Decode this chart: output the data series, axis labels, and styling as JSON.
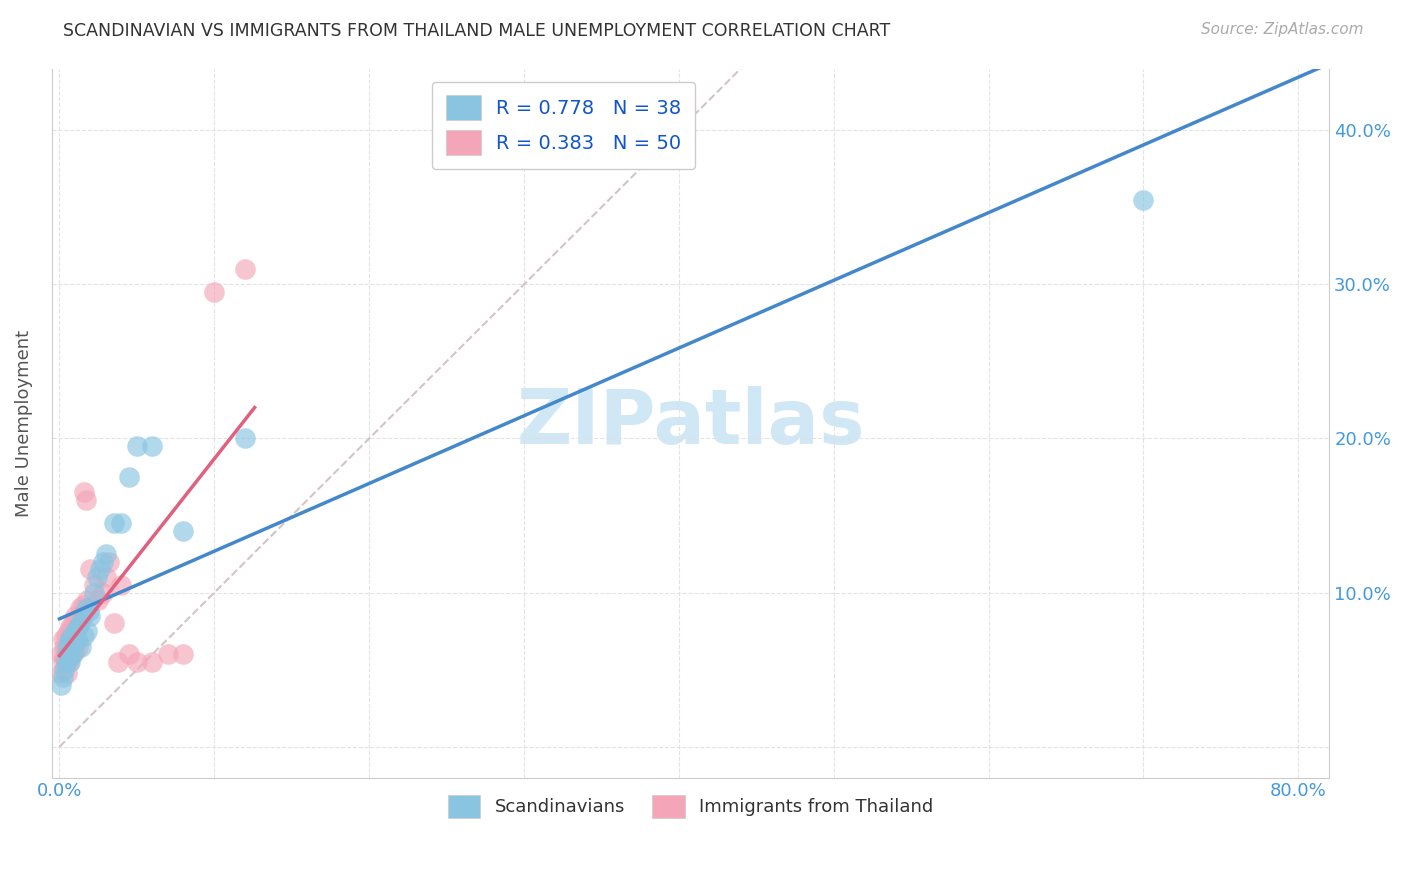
{
  "title": "SCANDINAVIAN VS IMMIGRANTS FROM THAILAND MALE UNEMPLOYMENT CORRELATION CHART",
  "source": "Source: ZipAtlas.com",
  "ylabel": "Male Unemployment",
  "x_ticks": [
    0.0,
    0.1,
    0.2,
    0.3,
    0.4,
    0.5,
    0.6,
    0.7,
    0.8
  ],
  "y_ticks": [
    0.0,
    0.1,
    0.2,
    0.3,
    0.4
  ],
  "right_y_tick_labels": [
    "",
    "10.0%",
    "20.0%",
    "30.0%",
    "40.0%"
  ],
  "xlim": [
    -0.005,
    0.82
  ],
  "ylim": [
    -0.02,
    0.44
  ],
  "legend1_label": "R = 0.778   N = 38",
  "legend2_label": "R = 0.383   N = 50",
  "legend_bottom1": "Scandinavians",
  "legend_bottom2": "Immigrants from Thailand",
  "blue_color": "#89c4e1",
  "pink_color": "#f4a6b8",
  "blue_line_color": "#4488cc",
  "pink_line_color": "#e06080",
  "ref_line_color": "#ccbbbb",
  "axis_label_color": "#4499dd",
  "watermark_color": "#d0e8f5",
  "grid_color": "#e0e0e0",
  "scandinavians_x": [
    0.001,
    0.002,
    0.003,
    0.004,
    0.005,
    0.005,
    0.006,
    0.006,
    0.007,
    0.007,
    0.008,
    0.008,
    0.009,
    0.01,
    0.01,
    0.011,
    0.012,
    0.013,
    0.014,
    0.015,
    0.016,
    0.017,
    0.018,
    0.019,
    0.02,
    0.022,
    0.024,
    0.026,
    0.028,
    0.03,
    0.035,
    0.04,
    0.045,
    0.05,
    0.06,
    0.08,
    0.12,
    0.7
  ],
  "scandinavians_y": [
    0.04,
    0.045,
    0.05,
    0.055,
    0.06,
    0.065,
    0.058,
    0.068,
    0.055,
    0.07,
    0.065,
    0.072,
    0.06,
    0.068,
    0.075,
    0.07,
    0.078,
    0.08,
    0.065,
    0.085,
    0.072,
    0.09,
    0.075,
    0.088,
    0.085,
    0.1,
    0.11,
    0.115,
    0.12,
    0.125,
    0.145,
    0.145,
    0.175,
    0.195,
    0.195,
    0.14,
    0.2,
    0.355
  ],
  "thailand_x": [
    0.001,
    0.001,
    0.002,
    0.002,
    0.003,
    0.003,
    0.004,
    0.004,
    0.005,
    0.005,
    0.005,
    0.006,
    0.006,
    0.006,
    0.007,
    0.007,
    0.007,
    0.008,
    0.008,
    0.009,
    0.009,
    0.01,
    0.01,
    0.01,
    0.011,
    0.011,
    0.012,
    0.012,
    0.013,
    0.014,
    0.015,
    0.016,
    0.017,
    0.018,
    0.02,
    0.022,
    0.025,
    0.028,
    0.03,
    0.032,
    0.035,
    0.038,
    0.04,
    0.045,
    0.05,
    0.06,
    0.07,
    0.08,
    0.1,
    0.12
  ],
  "thailand_y": [
    0.048,
    0.06,
    0.055,
    0.07,
    0.058,
    0.065,
    0.06,
    0.072,
    0.048,
    0.062,
    0.068,
    0.055,
    0.065,
    0.075,
    0.058,
    0.068,
    0.078,
    0.06,
    0.072,
    0.065,
    0.08,
    0.062,
    0.075,
    0.085,
    0.07,
    0.078,
    0.065,
    0.082,
    0.09,
    0.085,
    0.092,
    0.165,
    0.16,
    0.095,
    0.115,
    0.105,
    0.095,
    0.1,
    0.11,
    0.12,
    0.08,
    0.055,
    0.105,
    0.06,
    0.055,
    0.055,
    0.06,
    0.06,
    0.295,
    0.31
  ]
}
